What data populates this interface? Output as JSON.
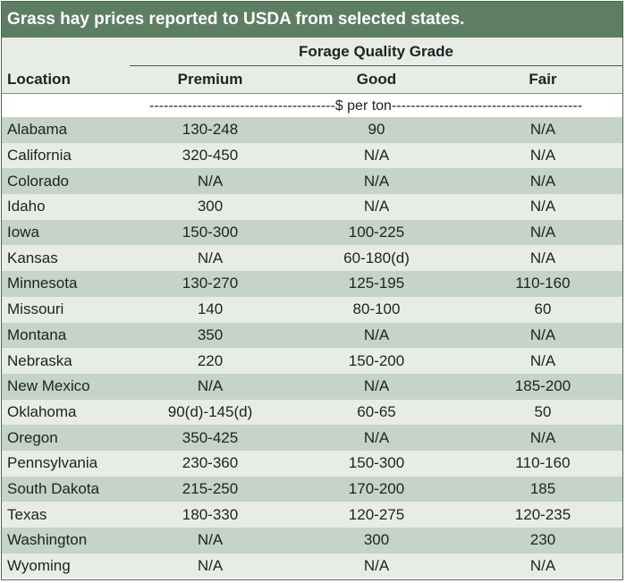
{
  "title": "Grass hay prices reported to USDA from selected states.",
  "header": {
    "group_label": "Forage Quality Grade",
    "location_label": "Location",
    "columns": [
      "Premium",
      "Good",
      "Fair"
    ]
  },
  "units_label": "---------------------------------------$ per ton----------------------------------------",
  "rows": [
    {
      "location": "Alabama",
      "premium": "130-248",
      "good": "90",
      "fair": "N/A"
    },
    {
      "location": "California",
      "premium": "320-450",
      "good": "N/A",
      "fair": "N/A"
    },
    {
      "location": "Colorado",
      "premium": "N/A",
      "good": "N/A",
      "fair": "N/A"
    },
    {
      "location": "Idaho",
      "premium": "300",
      "good": "N/A",
      "fair": "N/A"
    },
    {
      "location": "Iowa",
      "premium": "150-300",
      "good": "100-225",
      "fair": "N/A"
    },
    {
      "location": "Kansas",
      "premium": "N/A",
      "good": "60-180(d)",
      "fair": "N/A"
    },
    {
      "location": "Minnesota",
      "premium": "130-270",
      "good": "125-195",
      "fair": "110-160"
    },
    {
      "location": "Missouri",
      "premium": "140",
      "good": "80-100",
      "fair": "60"
    },
    {
      "location": "Montana",
      "premium": "350",
      "good": "N/A",
      "fair": "N/A"
    },
    {
      "location": "Nebraska",
      "premium": "220",
      "good": "150-200",
      "fair": "N/A"
    },
    {
      "location": "New Mexico",
      "premium": "N/A",
      "good": "N/A",
      "fair": "185-200"
    },
    {
      "location": "Oklahoma",
      "premium": "90(d)-145(d)",
      "good": "60-65",
      "fair": "50"
    },
    {
      "location": "Oregon",
      "premium": "350-425",
      "good": "N/A",
      "fair": "N/A"
    },
    {
      "location": "Pennsylvania",
      "premium": "230-360",
      "good": "150-300",
      "fair": "110-160"
    },
    {
      "location": "South Dakota",
      "premium": "215-250",
      "good": "170-200",
      "fair": "185"
    },
    {
      "location": "Texas",
      "premium": "180-330",
      "good": "120-275",
      "fair": "120-235"
    },
    {
      "location": "Washington",
      "premium": "N/A",
      "good": "300",
      "fair": "230"
    },
    {
      "location": "Wyoming",
      "premium": "N/A",
      "good": "N/A",
      "fair": "N/A"
    }
  ],
  "colors": {
    "title_bg": "#5e7e63",
    "row_dark": "#c5d3c9",
    "row_light": "#e7ece7"
  }
}
